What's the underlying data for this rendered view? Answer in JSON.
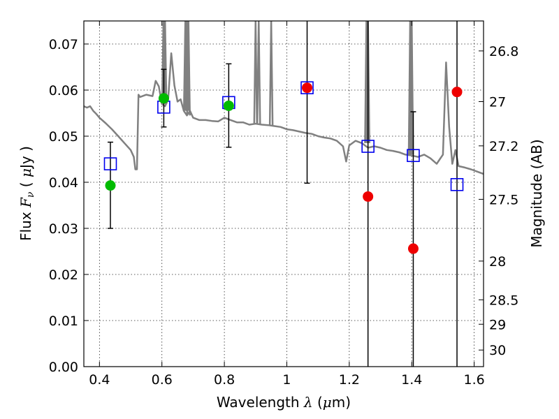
{
  "chart_data": {
    "type": "scatter",
    "xlabel": "Wavelength  λ (μm)",
    "ylabel": "Flux  Fν  ( μJy )",
    "y2label": "Magnitude (AB)",
    "xlim": [
      0.35,
      1.63
    ],
    "ylim": [
      0.0,
      0.075
    ],
    "grid": true,
    "x_ticks": [
      0.4,
      0.6,
      0.8,
      1.0,
      1.2,
      1.4,
      1.6
    ],
    "x_tick_labels": [
      "0.4",
      "0.6",
      "0.8",
      "1",
      "1.2",
      "1.4",
      "1.6"
    ],
    "y_ticks": [
      0.0,
      0.01,
      0.02,
      0.03,
      0.04,
      0.05,
      0.06,
      0.07
    ],
    "y_tick_labels": [
      "0.00",
      "0.01",
      "0.02",
      "0.03",
      "0.04",
      "0.05",
      "0.06",
      "0.07"
    ],
    "y2_ticks": [
      {
        "label": "26.8",
        "flux": 0.0685
      },
      {
        "label": "27",
        "flux": 0.0575
      },
      {
        "label": "27.2",
        "flux": 0.0479
      },
      {
        "label": "27.5",
        "flux": 0.0363
      },
      {
        "label": "28",
        "flux": 0.0229
      },
      {
        "label": "28.5",
        "flux": 0.0145
      },
      {
        "label": "29",
        "flux": 0.0092
      },
      {
        "label": "30",
        "flux": 0.0036
      }
    ],
    "series": [
      {
        "kind": "model_sed_line",
        "color": "#808080",
        "points": [
          [
            0.35,
            0.0565
          ],
          [
            0.36,
            0.0562
          ],
          [
            0.37,
            0.0565
          ],
          [
            0.38,
            0.0555
          ],
          [
            0.39,
            0.0548
          ],
          [
            0.4,
            0.054
          ],
          [
            0.42,
            0.0528
          ],
          [
            0.44,
            0.0515
          ],
          [
            0.46,
            0.05
          ],
          [
            0.48,
            0.0485
          ],
          [
            0.5,
            0.047
          ],
          [
            0.51,
            0.0455
          ],
          [
            0.515,
            0.0428
          ],
          [
            0.52,
            0.0428
          ],
          [
            0.525,
            0.059
          ],
          [
            0.53,
            0.0585
          ],
          [
            0.55,
            0.059
          ],
          [
            0.57,
            0.0587
          ],
          [
            0.58,
            0.062
          ],
          [
            0.59,
            0.0608
          ],
          [
            0.6,
            0.057
          ],
          [
            0.61,
            0.0565
          ],
          [
            0.62,
            0.058
          ],
          [
            0.63,
            0.068
          ],
          [
            0.64,
            0.061
          ],
          [
            0.65,
            0.0575
          ],
          [
            0.66,
            0.058
          ],
          [
            0.67,
            0.0555
          ],
          [
            0.68,
            0.0545
          ],
          [
            0.69,
            0.0555
          ],
          [
            0.7,
            0.054
          ],
          [
            0.72,
            0.0535
          ],
          [
            0.74,
            0.0535
          ],
          [
            0.76,
            0.0533
          ],
          [
            0.78,
            0.0532
          ],
          [
            0.8,
            0.054
          ],
          [
            0.82,
            0.0535
          ],
          [
            0.84,
            0.053
          ],
          [
            0.86,
            0.053
          ],
          [
            0.88,
            0.0525
          ],
          [
            0.9,
            0.0527
          ],
          [
            0.92,
            0.0525
          ],
          [
            0.94,
            0.0524
          ],
          [
            0.96,
            0.0522
          ],
          [
            0.98,
            0.052
          ],
          [
            1.0,
            0.0515
          ],
          [
            1.02,
            0.0513
          ],
          [
            1.04,
            0.051
          ],
          [
            1.06,
            0.0507
          ],
          [
            1.08,
            0.0505
          ],
          [
            1.1,
            0.05
          ],
          [
            1.12,
            0.0497
          ],
          [
            1.14,
            0.0495
          ],
          [
            1.16,
            0.049
          ],
          [
            1.18,
            0.0478
          ],
          [
            1.19,
            0.0445
          ],
          [
            1.2,
            0.048
          ],
          [
            1.22,
            0.049
          ],
          [
            1.24,
            0.0485
          ],
          [
            1.26,
            0.0475
          ],
          [
            1.28,
            0.0478
          ],
          [
            1.3,
            0.0475
          ],
          [
            1.32,
            0.047
          ],
          [
            1.34,
            0.0468
          ],
          [
            1.36,
            0.0465
          ],
          [
            1.38,
            0.046
          ],
          [
            1.4,
            0.0458
          ],
          [
            1.42,
            0.0455
          ],
          [
            1.44,
            0.046
          ],
          [
            1.46,
            0.0452
          ],
          [
            1.48,
            0.044
          ],
          [
            1.49,
            0.045
          ],
          [
            1.5,
            0.046
          ],
          [
            1.51,
            0.066
          ],
          [
            1.52,
            0.052
          ],
          [
            1.53,
            0.044
          ],
          [
            1.54,
            0.047
          ],
          [
            1.55,
            0.0435
          ],
          [
            1.57,
            0.0432
          ],
          [
            1.59,
            0.0428
          ],
          [
            1.61,
            0.0423
          ],
          [
            1.63,
            0.0418
          ]
        ],
        "spikes": [
          [
            0.605,
            0.075
          ],
          [
            0.61,
            0.075
          ],
          [
            0.675,
            0.075
          ],
          [
            0.68,
            0.075
          ],
          [
            0.685,
            0.075
          ],
          [
            0.9,
            0.075
          ],
          [
            0.91,
            0.075
          ],
          [
            0.95,
            0.075
          ],
          [
            1.255,
            0.075
          ],
          [
            1.26,
            0.075
          ],
          [
            1.395,
            0.075
          ],
          [
            1.4,
            0.075
          ]
        ]
      },
      {
        "kind": "observed_detection",
        "color": "#00bb00",
        "points": [
          {
            "x": 0.435,
            "y": 0.0393,
            "err_low": 0.03,
            "err_high": 0.0487
          },
          {
            "x": 0.606,
            "y": 0.0582,
            "err_low": 0.052,
            "err_high": 0.0645
          },
          {
            "x": 0.814,
            "y": 0.0566,
            "err_low": 0.0476,
            "err_high": 0.0657
          }
        ]
      },
      {
        "kind": "observed_low_significance",
        "color": "#ee0000",
        "points": [
          {
            "x": 1.065,
            "y": 0.0605,
            "err_low": 0.0398,
            "err_high": 0.075
          },
          {
            "x": 1.26,
            "y": 0.0369,
            "err_low": 0.0,
            "err_high": 0.075
          },
          {
            "x": 1.405,
            "y": 0.0256,
            "err_low": 0.0,
            "err_high": 0.0553
          },
          {
            "x": 1.545,
            "y": 0.0596,
            "err_low": 0.0,
            "err_high": 0.075
          }
        ]
      },
      {
        "kind": "model_synthetic_photometry",
        "color": "#0000ee",
        "points": [
          {
            "x": 0.435,
            "y": 0.044
          },
          {
            "x": 0.606,
            "y": 0.0563
          },
          {
            "x": 0.814,
            "y": 0.0573
          },
          {
            "x": 1.065,
            "y": 0.0605
          },
          {
            "x": 1.26,
            "y": 0.0478
          },
          {
            "x": 1.405,
            "y": 0.0458
          },
          {
            "x": 1.545,
            "y": 0.0395
          }
        ]
      }
    ]
  }
}
